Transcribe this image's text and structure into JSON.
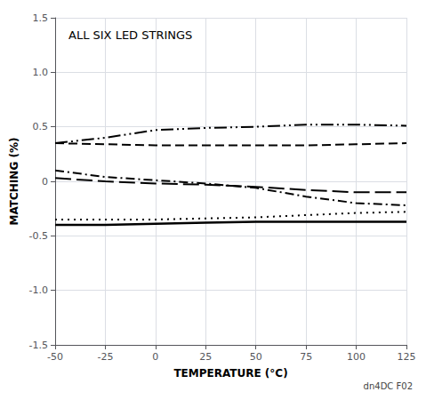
{
  "chart_data": {
    "type": "line",
    "title": "ALL SIX LED STRINGS",
    "xlabel": "TEMPERATURE (°C)",
    "ylabel": "MATCHING (%)",
    "annotation": "dn4DC F02",
    "x": [
      -50,
      -25,
      0,
      25,
      50,
      75,
      100,
      125
    ],
    "series": [
      {
        "color": "#000000",
        "line_style": "dash-dot-dot",
        "values": [
          0.35,
          0.4,
          0.47,
          0.49,
          0.5,
          0.52,
          0.52,
          0.51
        ]
      },
      {
        "color": "#000000",
        "line_style": "dashed",
        "values": [
          0.35,
          0.34,
          0.33,
          0.33,
          0.33,
          0.33,
          0.34,
          0.35
        ]
      },
      {
        "color": "#000000",
        "line_style": "dash-dot",
        "values": [
          0.1,
          0.04,
          0.01,
          -0.02,
          -0.06,
          -0.14,
          -0.2,
          -0.22
        ]
      },
      {
        "color": "#000000",
        "line_style": "long-dash",
        "values": [
          0.03,
          0.0,
          -0.02,
          -0.03,
          -0.05,
          -0.08,
          -0.1,
          -0.1
        ]
      },
      {
        "color": "#000000",
        "line_style": "dotted",
        "values": [
          -0.35,
          -0.35,
          -0.35,
          -0.34,
          -0.33,
          -0.31,
          -0.29,
          -0.28
        ]
      },
      {
        "color": "#000000",
        "line_style": "solid",
        "values": [
          -0.4,
          -0.4,
          -0.39,
          -0.38,
          -0.37,
          -0.37,
          -0.37,
          -0.37
        ]
      }
    ],
    "xlim": [
      -50,
      125
    ],
    "ylim": [
      -1.5,
      1.5
    ],
    "xticks": [
      -50,
      -25,
      0,
      25,
      50,
      75,
      100,
      125
    ],
    "yticks": [
      -1.5,
      {
        "value": -1.0,
        "label": "-1.0"
      },
      -0.5,
      0,
      0.5,
      {
        "value": 1.0,
        "label": "1.0"
      },
      1.5
    ],
    "grid": true
  }
}
